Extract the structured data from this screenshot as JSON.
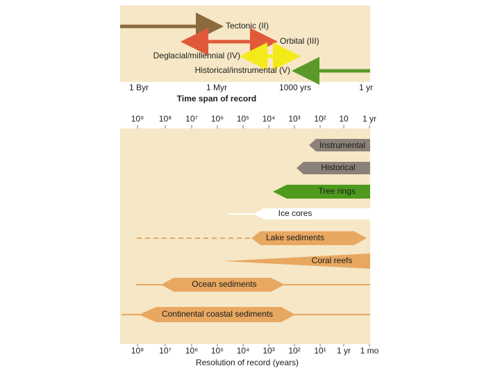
{
  "panel_top": {
    "arrows": [
      {
        "label": "Tectonic (II)"
      },
      {
        "label": "Orbital (III)"
      },
      {
        "label": "Deglacial/millennial (IV)"
      },
      {
        "label": "Historical/instrumental (V)"
      }
    ],
    "axis_labels": [
      "1 Byr",
      "1 Myr",
      "1000 yrs",
      "1 yr"
    ],
    "axis_title": "Time span of record"
  },
  "panel_bottom": {
    "top_axis_labels": [
      "10⁹",
      "10⁸",
      "10⁷",
      "10⁶",
      "10⁵",
      "10⁴",
      "10³",
      "10²",
      "10",
      "1 yr"
    ],
    "records": [
      {
        "label": "Instrumental"
      },
      {
        "label": "Historical"
      },
      {
        "label": "Tree rings"
      },
      {
        "label": "Ice cores"
      },
      {
        "label": "Lake sediments"
      },
      {
        "label": "Coral reefs"
      },
      {
        "label": "Ocean sediments"
      },
      {
        "label": "Continental coastal sediments"
      }
    ],
    "bottom_axis_labels": [
      "10⁸",
      "10⁷",
      "10⁶",
      "10⁵",
      "10⁴",
      "10³",
      "10²",
      "10¹",
      "1 yr",
      "1 mo"
    ],
    "axis_title": "Resolution of record (years)"
  }
}
